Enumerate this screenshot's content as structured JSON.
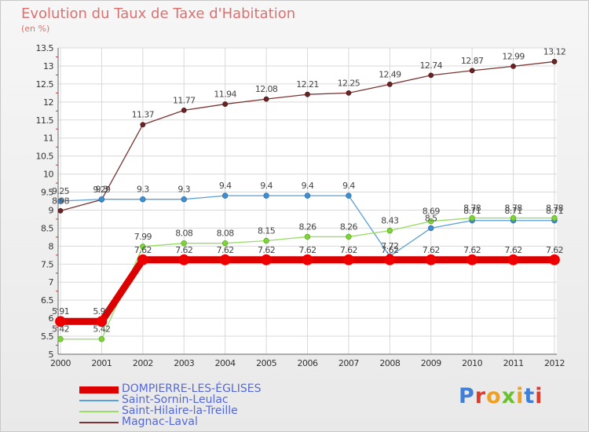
{
  "chart_data": {
    "type": "line",
    "title": "Evolution du Taux de Taxe d'Habitation",
    "subtitle": "(en %)",
    "x": [
      "2000",
      "2001",
      "2002",
      "2003",
      "2004",
      "2005",
      "2006",
      "2007",
      "2008",
      "2009",
      "2010",
      "2011",
      "2012"
    ],
    "ylim": [
      5,
      13.5
    ],
    "yticks": [
      "5",
      "5.5",
      "6",
      "6.5",
      "7",
      "7.5",
      "8",
      "8.5",
      "9",
      "9.5",
      "10",
      "10.5",
      "11",
      "11.5",
      "12",
      "12.5",
      "13",
      "13.5"
    ],
    "grid": true,
    "legend_position": "bottom-left",
    "series": [
      {
        "name": "DOMPIERRE-LES-ÉGLISES",
        "color": "#ee0000",
        "values": [
          5.91,
          5.91,
          7.62,
          7.62,
          7.62,
          7.62,
          7.62,
          7.62,
          7.62,
          7.62,
          7.62,
          7.62,
          7.62
        ],
        "labels": [
          "5.91",
          "5.91",
          "7.62",
          "7.62",
          "7.62",
          "7.62",
          "7.62",
          "7.62",
          "7.62",
          "7.62",
          "7.62",
          "7.62",
          "7.62"
        ]
      },
      {
        "name": "Saint-Sornin-Leulac",
        "color": "#4d94d4",
        "values": [
          9.25,
          9.3,
          9.3,
          9.3,
          9.4,
          9.4,
          9.4,
          9.4,
          7.72,
          8.5,
          8.71,
          8.71,
          8.71
        ],
        "labels": [
          "9.25",
          "9.3",
          "9.3",
          "9.3",
          "9.4",
          "9.4",
          "9.4",
          "9.4",
          "7.72",
          "8.5",
          "8.71",
          "8.71",
          "8.71"
        ]
      },
      {
        "name": "Saint-Hilaire-la-Treille",
        "color": "#88dd44",
        "values": [
          5.42,
          5.42,
          7.99,
          8.08,
          8.08,
          8.15,
          8.26,
          8.26,
          8.43,
          8.69,
          8.78,
          8.78,
          8.78
        ],
        "labels": [
          "5.42",
          "5.42",
          "7.99",
          "8.08",
          "8.08",
          "8.15",
          "8.26",
          "8.26",
          "8.43",
          "8.69",
          "8.78",
          "8.78",
          "8.78"
        ]
      },
      {
        "name": "Magnac-Laval",
        "color": "#7a3434",
        "values": [
          8.98,
          9.29,
          11.37,
          11.77,
          11.94,
          12.08,
          12.21,
          12.25,
          12.49,
          12.74,
          12.87,
          12.99,
          13.12
        ],
        "labels": [
          "8.98",
          "9.29",
          "11.37",
          "11.77",
          "11.94",
          "12.08",
          "12.21",
          "12.25",
          "12.49",
          "12.74",
          "12.87",
          "12.99",
          "13.12"
        ]
      }
    ]
  },
  "logo": {
    "text": "Proxiti"
  }
}
